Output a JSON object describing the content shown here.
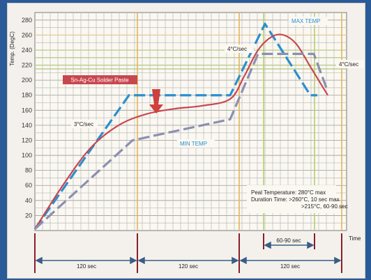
{
  "chart_data": {
    "type": "line",
    "ylabel": "Temp. (DegC)",
    "xlabel": "Time",
    "ylim": [
      0,
      290
    ],
    "yticks": [
      20,
      40,
      60,
      80,
      100,
      120,
      140,
      160,
      180,
      200,
      220,
      240,
      260,
      280
    ],
    "grid": true,
    "series": [
      {
        "name": "MAX TEMP",
        "color": "#2a8fcf",
        "style": "dashed",
        "x": [
          0,
          135,
          145,
          280,
          330,
          395,
          405
        ],
        "y": [
          2,
          180,
          180,
          180,
          275,
          180,
          180
        ]
      },
      {
        "name": "Sn-Ag-Cu Solder Paste",
        "color": "#c8474f",
        "style": "solid",
        "x": [
          0,
          40,
          80,
          120,
          160,
          200,
          240,
          280,
          300,
          320,
          340,
          357,
          375,
          395,
          420
        ],
        "y": [
          2,
          60,
          110,
          140,
          155,
          162,
          166,
          175,
          205,
          240,
          258,
          260,
          248,
          218,
          180
        ]
      },
      {
        "name": "MIN TEMP",
        "color": "#8b8fb0",
        "style": "dashed",
        "x": [
          0,
          140,
          280,
          320,
          360,
          400,
          420
        ],
        "y": [
          2,
          120,
          148,
          235,
          235,
          235,
          185
        ]
      }
    ],
    "annotations": {
      "paste": "Sn-Ag-Cu Solder Paste",
      "rate1": "3°C/sec",
      "rate2": "4°C/sec",
      "rate3": "4°C/sec",
      "max_temp": "MAX TEMP",
      "min_temp": "MIN TEMP",
      "info_line1": "Peal Temperature:    280°C max",
      "info_line2": "Duration Time:        >260°C, 10 sec max",
      "info_line3": ">215°C, 60-90 sec",
      "interval1": "120 sec",
      "interval2": "120 sec",
      "interval3": "120 sec",
      "interval_peak": "60-90 sec"
    }
  }
}
